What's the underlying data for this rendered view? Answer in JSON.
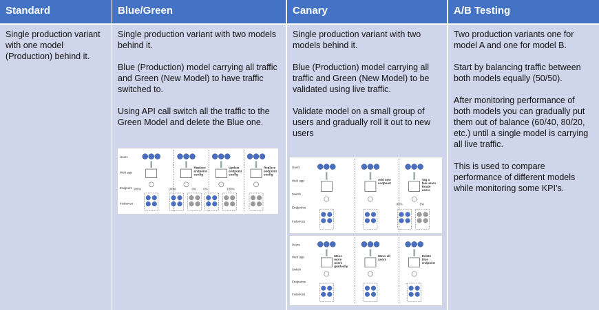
{
  "table": {
    "headers": [
      "Standard",
      "Blue/Green",
      "Canary",
      "A/B Testing"
    ],
    "cells": [
      [
        "Single production variant with one model (Production) behind it."
      ],
      [
        "Single production variant with two models behind it.",
        "Blue (Production) model carrying all traffic and Green (New Model) to have traffic switched to.",
        "Using API call switch all the traffic to the Green Model and delete the Blue one."
      ],
      [
        "Single production variant with two models behind it.",
        "Blue (Production) model carrying all traffic and Green (New Model) to be validated using live traffic.",
        "Validate model on a small group of users and gradually roll it out to new users"
      ],
      [
        "Two production variants one for model A and one for model B.",
        "Start by balancing traffic between both models equally (50/50).",
        "After monitoring performance of both models you can gradually put them out of balance (60/40, 80/20, etc.) until a single model is carrying all live traffic.",
        "This is used to compare performance of different models while monitoring some KPI’s."
      ]
    ]
  },
  "diagrams": [
    {
      "row_labels": [
        "Users",
        "Web app",
        "Endpoint",
        "Instances"
      ],
      "panels": [
        {
          "notes": [],
          "splits": [
            "100%"
          ]
        },
        {
          "notes": [
            "Replace",
            "endpoint",
            "config"
          ],
          "splits": [
            "100%",
            "0%"
          ]
        },
        {
          "notes": [
            "Update",
            "endpoint",
            "config"
          ],
          "splits": [
            "0%",
            "100%"
          ]
        },
        {
          "notes": [
            "Replace",
            "endpoint",
            "config"
          ],
          "splits": []
        }
      ]
    },
    {
      "row_labels": [
        "Users",
        "Web app",
        "Switch",
        "Endpoints",
        "Instances"
      ],
      "panels": [
        {
          "notes": [],
          "splits": []
        },
        {
          "notes": [
            "Add new",
            "endpoint"
          ],
          "splits": []
        },
        {
          "notes": [
            "Tag a",
            "few users",
            "Route",
            "users"
          ],
          "splits": [
            "95%",
            "5%"
          ]
        }
      ]
    },
    {
      "row_labels": [
        "Users",
        "Web app",
        "Switch",
        "Endpoints",
        "Instances"
      ],
      "panels": [
        {
          "notes": [
            "Move",
            "more",
            "users",
            "gradually"
          ],
          "splits": []
        },
        {
          "notes": [
            "Move all",
            "users"
          ],
          "splits": []
        },
        {
          "notes": [
            "Delete",
            "blue",
            "endpoint"
          ],
          "splits": []
        }
      ]
    }
  ]
}
